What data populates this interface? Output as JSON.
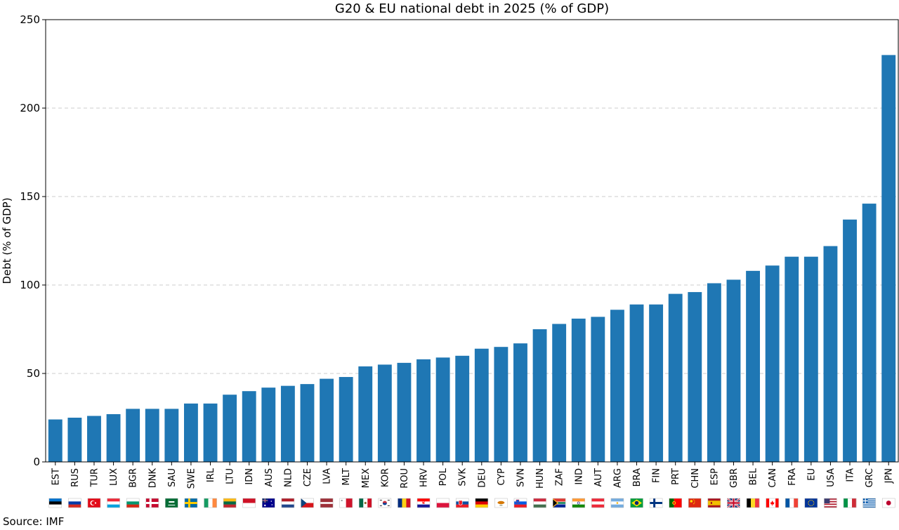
{
  "chart_data": {
    "type": "bar",
    "title": "G20 & EU national debt in 2025 (% of GDP)",
    "xlabel": "",
    "ylabel": "Debt (% of GDP)",
    "ylim": [
      0,
      250
    ],
    "yticks": [
      0,
      50,
      100,
      150,
      200,
      250
    ],
    "grid": "y-dashed",
    "bar_color": "#1f77b4",
    "categories": [
      "EST",
      "RUS",
      "TUR",
      "LUX",
      "BGR",
      "DNK",
      "SAU",
      "SWE",
      "IRL",
      "LTU",
      "IDN",
      "AUS",
      "NLD",
      "CZE",
      "LVA",
      "MLT",
      "MEX",
      "KOR",
      "ROU",
      "HRV",
      "POL",
      "SVK",
      "DEU",
      "CYP",
      "SVN",
      "HUN",
      "ZAF",
      "IND",
      "AUT",
      "ARG",
      "BRA",
      "FIN",
      "PRT",
      "CHN",
      "ESP",
      "GBR",
      "BEL",
      "CAN",
      "FRA",
      "EU",
      "USA",
      "ITA",
      "GRC",
      "JPN"
    ],
    "values": [
      24,
      25,
      26,
      27,
      30,
      30,
      30,
      33,
      33,
      38,
      40,
      42,
      43,
      44,
      47,
      48,
      54,
      55,
      56,
      58,
      59,
      60,
      64,
      65,
      67,
      75,
      78,
      81,
      82,
      86,
      89,
      89,
      95,
      96,
      101,
      103,
      108,
      111,
      116,
      116,
      122,
      137,
      146,
      230
    ],
    "flags": [
      "estonia-flag",
      "russia-flag",
      "turkey-flag",
      "luxembourg-flag",
      "bulgaria-flag",
      "denmark-flag",
      "saudi-arabia-flag",
      "sweden-flag",
      "ireland-flag",
      "lithuania-flag",
      "indonesia-flag",
      "australia-flag",
      "netherlands-flag",
      "czechia-flag",
      "latvia-flag",
      "malta-flag",
      "mexico-flag",
      "south-korea-flag",
      "romania-flag",
      "croatia-flag",
      "poland-flag",
      "slovakia-flag",
      "germany-flag",
      "cyprus-flag",
      "slovenia-flag",
      "hungary-flag",
      "south-africa-flag",
      "india-flag",
      "austria-flag",
      "argentina-flag",
      "brazil-flag",
      "finland-flag",
      "portugal-flag",
      "china-flag",
      "spain-flag",
      "uk-flag",
      "belgium-flag",
      "canada-flag",
      "france-flag",
      "eu-flag",
      "usa-flag",
      "italy-flag",
      "greece-flag",
      "japan-flag"
    ]
  },
  "source": "Source: IMF"
}
